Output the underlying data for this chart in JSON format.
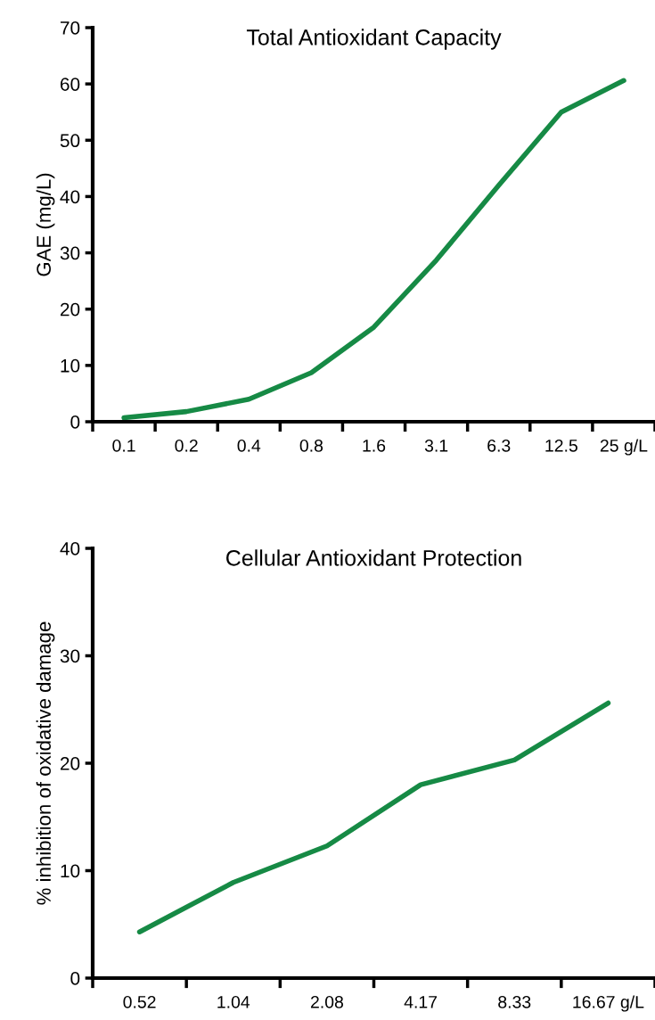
{
  "chart_data": [
    {
      "type": "line",
      "title": "Total Antioxidant Capacity",
      "ylabel": "GAE (mg/L)",
      "categories": [
        "0.1",
        "0.2",
        "0.4",
        "0.8",
        "1.6",
        "3.1",
        "6.3",
        "12.5",
        "25 g/L"
      ],
      "series": [
        {
          "color": "#168a45",
          "values": [
            0.7,
            1.8,
            4.0,
            8.7,
            16.8,
            28.7,
            42,
            55,
            60.6
          ]
        }
      ],
      "ylim": [
        0,
        70
      ],
      "yticks": [
        0,
        10,
        20,
        30,
        40,
        50,
        60,
        70
      ],
      "grid": false,
      "marker": "none",
      "line_style": "solid"
    },
    {
      "type": "line",
      "title": "Cellular Antioxidant Protection",
      "ylabel": "% inhibition of oxidative damage",
      "categories": [
        "0.52",
        "1.04",
        "2.08",
        "4.17",
        "8.33",
        "16.67 g/L"
      ],
      "series": [
        {
          "color": "#168a45",
          "values": [
            4.3,
            8.9,
            12.3,
            18.0,
            20.3,
            25.6
          ]
        }
      ],
      "ylim": [
        0,
        40
      ],
      "yticks": [
        0,
        10,
        20,
        30,
        40
      ],
      "grid": false,
      "marker": "none",
      "line_style": "solid"
    }
  ]
}
